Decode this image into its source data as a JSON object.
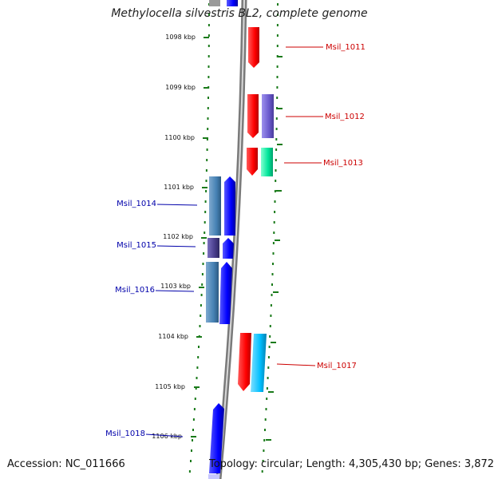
{
  "title": "Methylocella silvestris BL2, complete genome",
  "footer": {
    "accession": "Accession: NC_011666",
    "topology": "Topology: circular; Length: 4,305,430 bp; Genes: 3,872"
  },
  "ticks": [
    "1098 kbp",
    "1099 kbp",
    "1100 kbp",
    "1101 kbp",
    "1102 kbp",
    "1103 kbp",
    "1104 kbp",
    "1105 kbp",
    "1106 kbp"
  ],
  "genes": [
    {
      "label": "Msil_1011",
      "color": "#cc0000"
    },
    {
      "label": "Msil_1012",
      "color": "#cc0000"
    },
    {
      "label": "Msil_1013",
      "color": "#cc0000"
    },
    {
      "label": "Msil_1014",
      "color": "#0000aa"
    },
    {
      "label": "Msil_1015",
      "color": "#0000aa"
    },
    {
      "label": "Msil_1016",
      "color": "#0000aa"
    },
    {
      "label": "Msil_1017",
      "color": "#cc0000"
    },
    {
      "label": "Msil_1018",
      "color": "#0000aa"
    }
  ],
  "colors": {
    "backbone": "#8c8c8c",
    "tick": "#1a7a1a",
    "forward_cds": "#ff0000",
    "reverse_cds": "#0000ff",
    "purple_feature": "#6a5acd",
    "green_feature": "#00e59a",
    "cyan_feature": "#00bfff",
    "steelblue_feature": "#4682b4",
    "darkslate_feature": "#483d8b"
  }
}
